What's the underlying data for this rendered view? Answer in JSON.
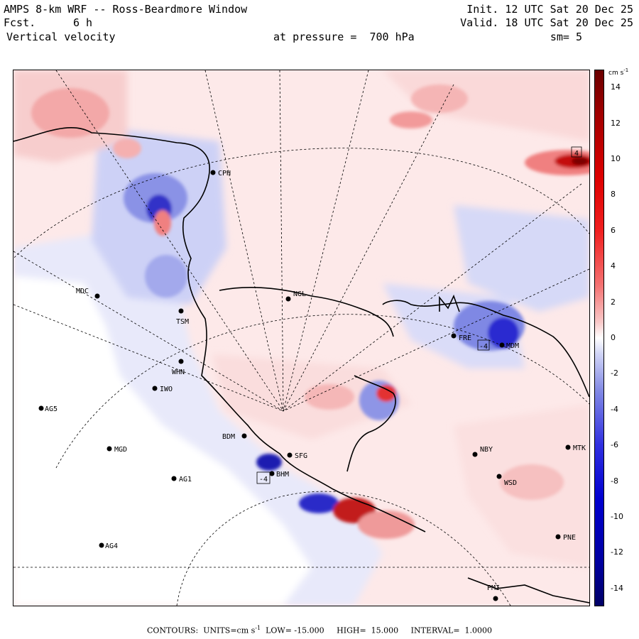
{
  "header": {
    "title": "AMPS 8-km WRF -- Ross-Beardmore Window",
    "init": "Init. 12 UTC Sat 20 Dec 25",
    "fcst_label": "Fcst.",
    "fcst_value": "6 h",
    "valid": "Valid. 18 UTC Sat 20 Dec 25",
    "field": "Vertical velocity",
    "pressure": "at pressure =  700 hPa",
    "smoothing": "sm= 5"
  },
  "colorbar": {
    "units": "cm s",
    "units_exp": "-1",
    "ticks": [
      "14",
      "12",
      "10",
      "8",
      "6",
      "4",
      "2",
      "0",
      "-2",
      "-4",
      "-6",
      "-8",
      "-10",
      "-12",
      "-14"
    ],
    "tick_values": [
      14,
      12,
      10,
      8,
      6,
      4,
      2,
      0,
      -2,
      -4,
      -6,
      -8,
      -10,
      -12,
      -14
    ],
    "range": [
      -15,
      15
    ],
    "colors": {
      "pos_strong": "#7a0000",
      "pos_mid": "#ee1010",
      "pos_light": "#f4b0b0",
      "neutral": "#ffffff",
      "neg_light": "#b9bff0",
      "neg_mid": "#2020e0",
      "neg_strong": "#00007a"
    }
  },
  "stations": [
    {
      "name": "CPH"
    },
    {
      "name": "NGL"
    },
    {
      "name": "MDC"
    },
    {
      "name": "TSM"
    },
    {
      "name": "WHN"
    },
    {
      "name": "IWO"
    },
    {
      "name": "AG5"
    },
    {
      "name": "MGD"
    },
    {
      "name": "AG1"
    },
    {
      "name": "AG4"
    },
    {
      "name": "BDM"
    },
    {
      "name": "SFG"
    },
    {
      "name": "BHM"
    },
    {
      "name": "FRE"
    },
    {
      "name": "MDM"
    },
    {
      "name": "NBY"
    },
    {
      "name": "MTK"
    },
    {
      "name": "WSD"
    },
    {
      "name": "PNE"
    },
    {
      "name": "PMI"
    }
  ],
  "marks": [
    {
      "label": "4"
    },
    {
      "label": "-4"
    },
    {
      "label": "-4"
    }
  ],
  "footer": {
    "contours_label": "CONTOURS:",
    "units_label": "UNITS=cm s",
    "units_exp": "-1",
    "low": "LOW= -15.000",
    "high": "HIGH=  15.000",
    "interval": "INTERVAL=  1.0000"
  }
}
